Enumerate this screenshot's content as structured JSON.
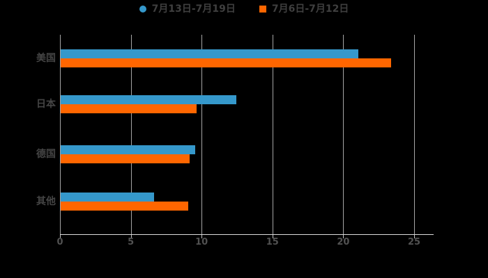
{
  "chart_data": {
    "type": "bar",
    "orientation": "horizontal",
    "title": "",
    "xlabel": "",
    "ylabel": "",
    "categories": [
      "美国",
      "日本",
      "德国",
      "其他"
    ],
    "series": [
      {
        "name": "7月13日-7月19日",
        "marker": "circle",
        "color": "#3598cb",
        "values": [
          21.0,
          12.4,
          9.5,
          6.6
        ]
      },
      {
        "name": "7月6日-7月12日",
        "marker": "square",
        "color": "#ff6600",
        "values": [
          23.3,
          9.6,
          9.1,
          9.0
        ]
      }
    ],
    "x_ticks": [
      "0",
      "5",
      "10",
      "15",
      "20",
      "25"
    ],
    "x_tick_values": [
      0,
      5,
      10,
      15,
      20,
      25
    ],
    "xlim": [
      0,
      25
    ],
    "grid": "vertical-only",
    "legend_position": "top-center",
    "colors": {
      "background": "#000000",
      "gridline": "#a6a6a6",
      "axis_line": "#dcdcdc",
      "tick_label": "#515151",
      "category_label": "#454545",
      "legend_label": "#3f3f3f"
    }
  }
}
